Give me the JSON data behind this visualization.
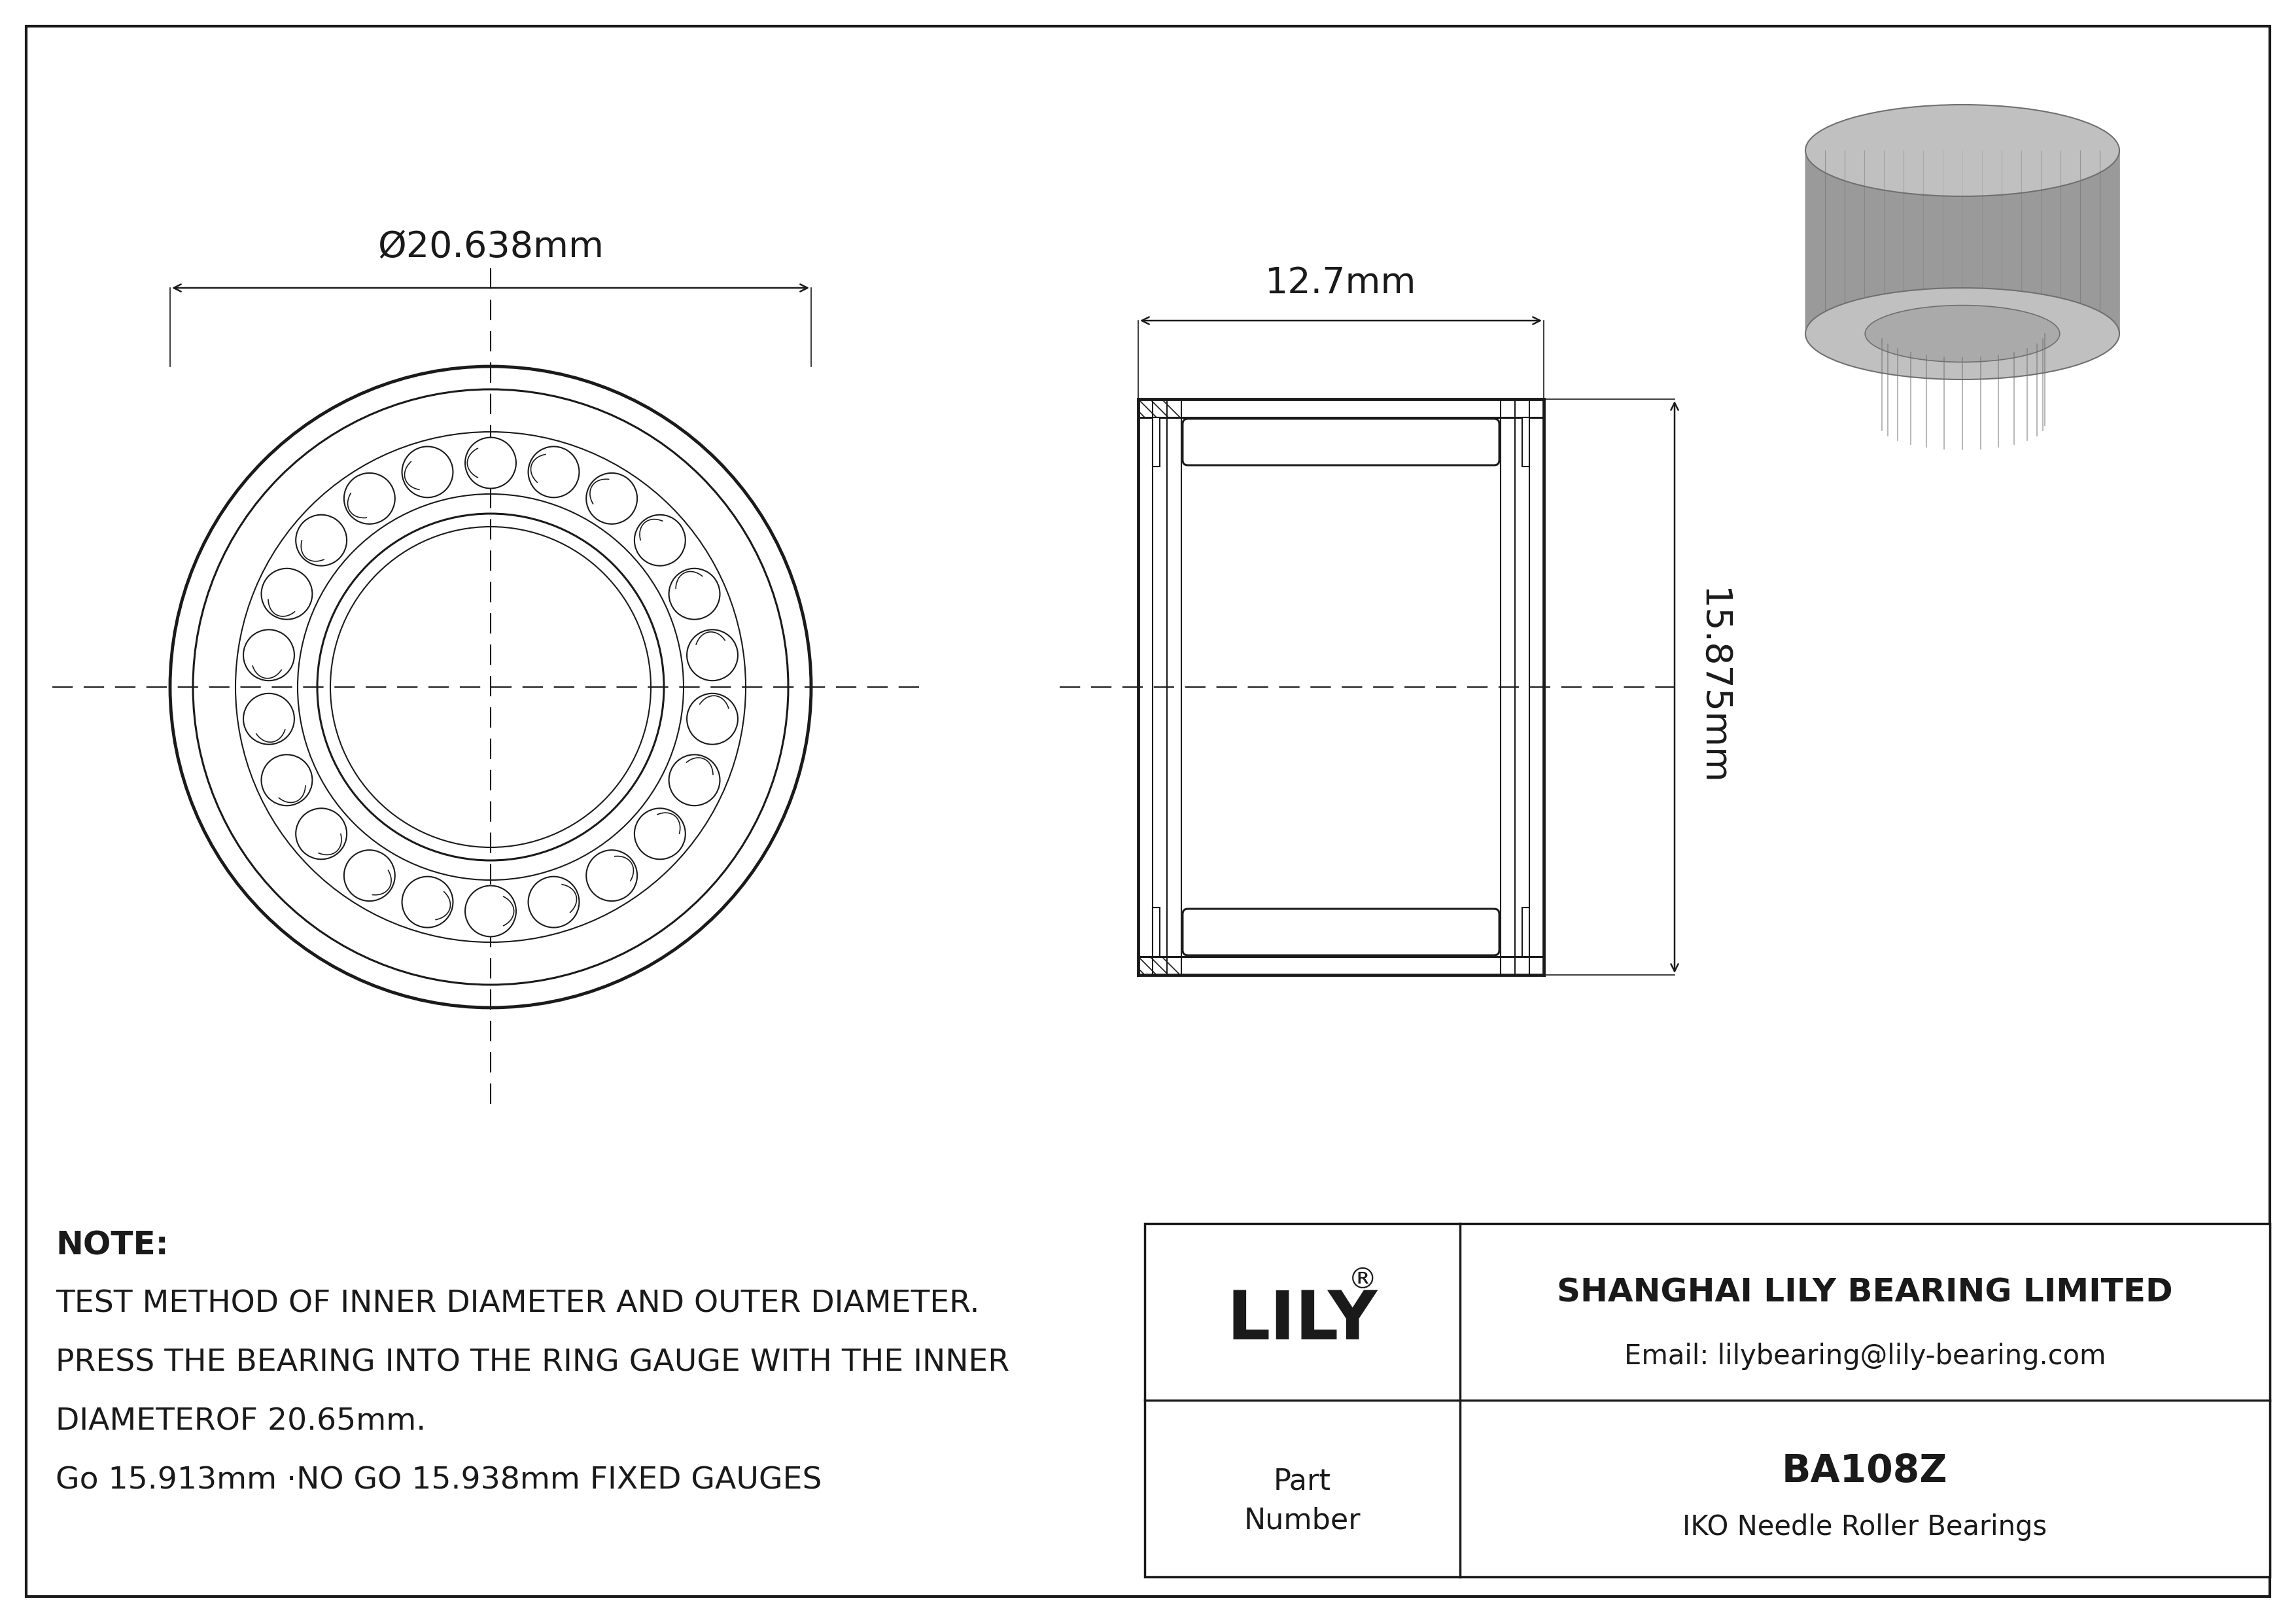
{
  "bg_color": "#ffffff",
  "line_color": "#1a1a1a",
  "diameter_label": "Ø20.638mm",
  "width_label": "12.7mm",
  "height_label": "15.875mm",
  "part_number": "BA108Z",
  "bearing_type": "IKO Needle Roller Bearings",
  "company_name": "SHANGHAI LILY BEARING LIMITED",
  "email": "Email: lilybearing@lily-bearing.com",
  "note_line1": "NOTE:",
  "note_line2": "TEST METHOD OF INNER DIAMETER AND OUTER DIAMETER.",
  "note_line3": "PRESS THE BEARING INTO THE RING GAUGE WITH THE INNER",
  "note_line4": "DIAMETEROF 20.65mm.",
  "note_line5": "Go 15.913mm ·NO GO 15.938mm FIXED GAUGES",
  "n_rollers": 22
}
